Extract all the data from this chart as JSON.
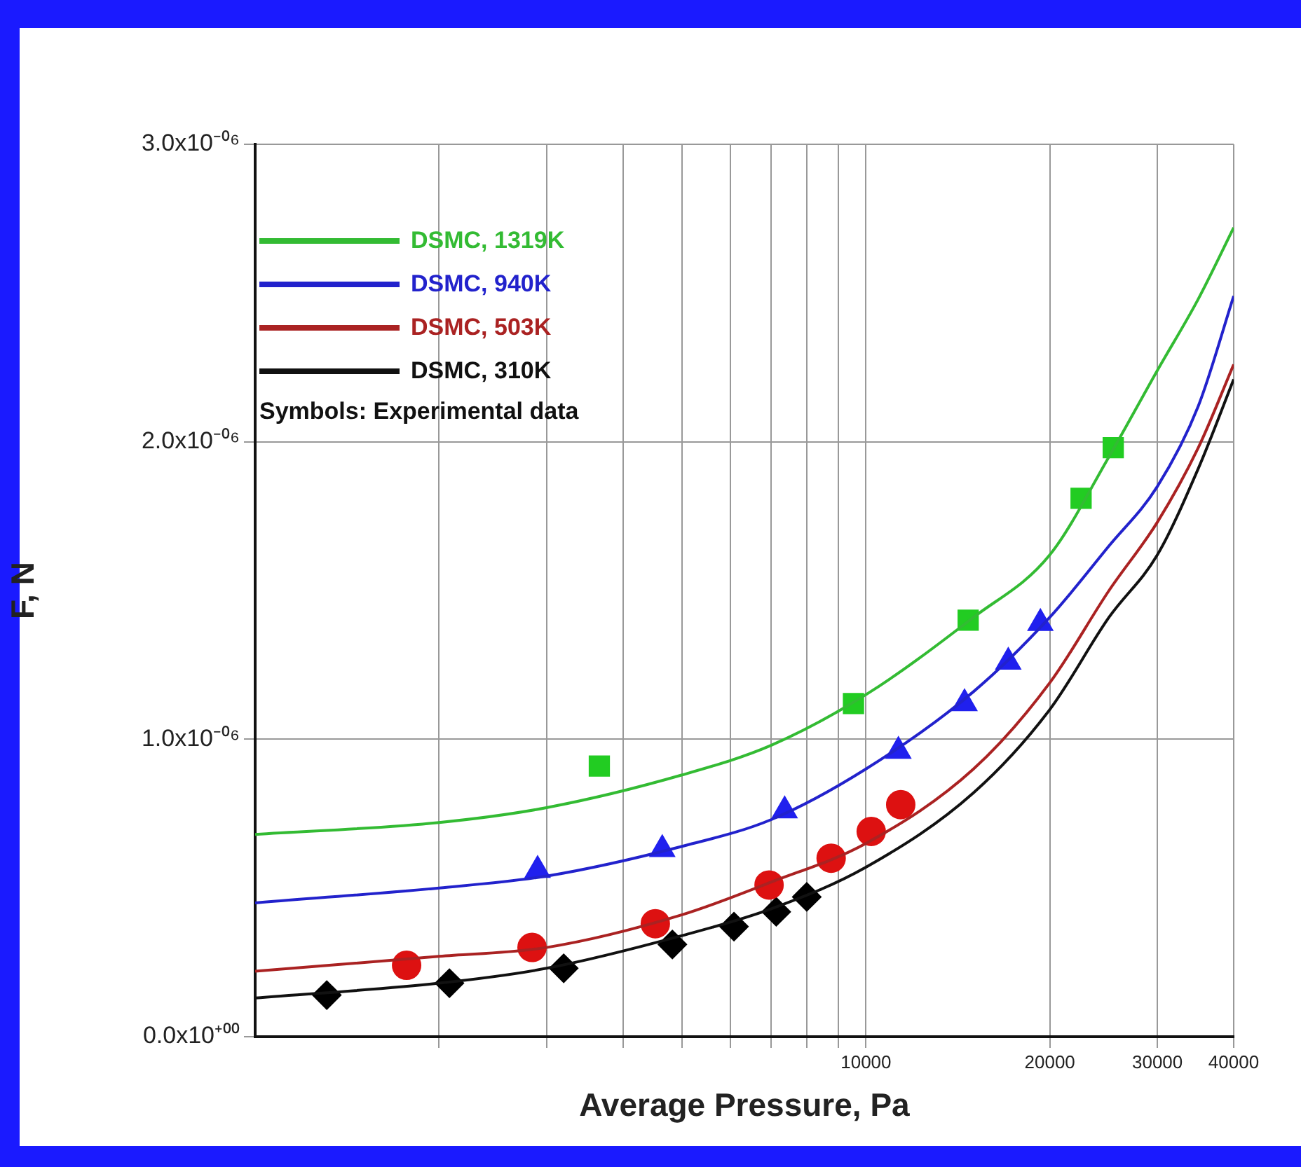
{
  "chart_data": {
    "type": "line",
    "xlabel": "Average Pressure, Pa",
    "ylabel": "F, N",
    "log": "x",
    "grid": true,
    "legend": "top left",
    "xlim": [
      1000,
      40000
    ],
    "xticks": [
      {
        "value": 2000,
        "label": null
      },
      {
        "value": 3000,
        "label": null
      },
      {
        "value": 4000,
        "label": null
      },
      {
        "value": 5000,
        "label": null
      },
      {
        "value": 6000,
        "label": null
      },
      {
        "value": 7000,
        "label": null
      },
      {
        "value": 8000,
        "label": null
      },
      {
        "value": 9000,
        "label": null
      },
      10000,
      20000,
      30000,
      40000
    ],
    "ylim": [
      0,
      3e-06
    ],
    "yticks": [
      {
        "value": 0,
        "label": "0.0x10⁺⁰⁰"
      },
      {
        "value": 1e-06,
        "label": "1.0x10⁻⁰⁶"
      },
      {
        "value": 2e-06,
        "label": "2.0x10⁻⁰⁶"
      },
      {
        "value": 3e-06,
        "label": "3.0x10⁻⁰⁶"
      }
    ],
    "annotations": [
      "Symbols: Experimental data"
    ],
    "series": [
      {
        "name": "DSMC, 1319K",
        "marker": "none",
        "color": "#33bb33",
        "x": [
          1000,
          2000,
          3000,
          5000,
          7000,
          10000,
          15000,
          20000,
          25000,
          30000,
          35000,
          40000
        ],
        "values": [
          6.8e-07,
          7.2e-07,
          7.7e-07,
          8.8e-07,
          9.8e-07,
          1.15e-06,
          1.41e-06,
          1.62e-06,
          1.95e-06,
          2.24e-06,
          2.48e-06,
          2.72e-06
        ]
      },
      {
        "name": "DSMC, 940K",
        "marker": "none",
        "color": "#2222cc",
        "x": [
          1000,
          2000,
          3000,
          5000,
          7000,
          10000,
          15000,
          20000,
          25000,
          30000,
          35000,
          40000
        ],
        "values": [
          4.5e-07,
          5e-07,
          5.4e-07,
          6.4e-07,
          7.3e-07,
          9e-07,
          1.16e-06,
          1.41e-06,
          1.65e-06,
          1.85e-06,
          2.12e-06,
          2.49e-06
        ]
      },
      {
        "name": "DSMC, 503K",
        "marker": "none",
        "color": "#aa2222",
        "x": [
          1000,
          2000,
          3000,
          5000,
          7000,
          10000,
          15000,
          20000,
          25000,
          30000,
          35000,
          40000
        ],
        "values": [
          2.2e-07,
          2.7e-07,
          3e-07,
          4.1e-07,
          5.2e-07,
          6.5e-07,
          9e-07,
          1.19e-06,
          1.5e-06,
          1.73e-06,
          1.98e-06,
          2.26e-06
        ]
      },
      {
        "name": "DSMC, 310K",
        "marker": "none",
        "color": "#111111",
        "x": [
          1000,
          2000,
          3000,
          5000,
          7000,
          10000,
          15000,
          20000,
          25000,
          30000,
          35000,
          40000
        ],
        "values": [
          1.3e-07,
          1.8e-07,
          2.3e-07,
          3.4e-07,
          4.3e-07,
          5.7e-07,
          8.2e-07,
          1.1e-06,
          1.41e-06,
          1.62e-06,
          1.91e-06,
          2.21e-06
        ]
      },
      {
        "type": "scatter",
        "marker": "square",
        "color": "#22cc22",
        "x": [
          3660,
          9540,
          14700,
          22500,
          25400
        ],
        "values": [
          9.1e-07,
          1.12e-06,
          1.4e-06,
          1.81e-06,
          1.98e-06
        ]
      },
      {
        "type": "scatter",
        "marker": "triangle",
        "color": "#2020ee",
        "x": [
          2900,
          4640,
          7360,
          11300,
          14500,
          17100,
          19300
        ],
        "values": [
          5.6e-07,
          6.3e-07,
          7.6e-07,
          9.6e-07,
          1.12e-06,
          1.26e-06,
          1.39e-06
        ]
      },
      {
        "type": "scatter",
        "marker": "circle",
        "color": "#dd1111",
        "x": [
          1770,
          2840,
          4520,
          6940,
          8770,
          10200,
          11400
        ],
        "values": [
          2.4e-07,
          3e-07,
          3.8e-07,
          5.1e-07,
          6e-07,
          6.9e-07,
          7.8e-07
        ]
      },
      {
        "type": "scatter",
        "marker": "diamond",
        "color": "#000000",
        "x": [
          1310,
          2080,
          3200,
          4820,
          6080,
          7130,
          8000
        ],
        "values": [
          1.4e-07,
          1.8e-07,
          2.3e-07,
          3.1e-07,
          3.7e-07,
          4.2e-07,
          4.7e-07
        ]
      }
    ]
  }
}
